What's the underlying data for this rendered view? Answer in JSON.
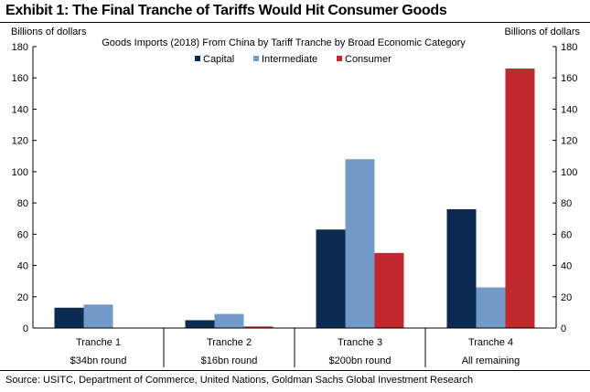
{
  "exhibit_title": "Exhibit 1: The Final Tranche of Tariffs Would Hit Consumer Goods",
  "source": "Source: USITC, Department of Commerce, United Nations, Goldman Sachs Global Investment Research",
  "colors": {
    "Capital": "#0b2a4f",
    "Intermediate": "#7399c6",
    "Consumer": "#c0282e"
  },
  "chart_data": {
    "type": "bar",
    "title": "Goods Imports (2018) From China by Tariff Tranche by Broad Economic Category",
    "ylabel_left": "Billions of dollars",
    "ylabel_right": "Billions of dollars",
    "ylim": [
      0,
      180
    ],
    "yticks": [
      0,
      20,
      40,
      60,
      80,
      100,
      120,
      140,
      160,
      180
    ],
    "categories": [
      "Tranche 1",
      "Tranche 2",
      "Tranche 3",
      "Tranche 4"
    ],
    "subcategories": [
      "$34bn round",
      "$16bn round",
      "$200bn round",
      "All remaining"
    ],
    "legend_position": "top-center",
    "grid": false,
    "series": [
      {
        "name": "Capital",
        "values": [
          13,
          5,
          63,
          76
        ]
      },
      {
        "name": "Intermediate",
        "values": [
          15,
          9,
          108,
          26
        ]
      },
      {
        "name": "Consumer",
        "values": [
          0,
          1,
          48,
          166
        ]
      }
    ]
  }
}
